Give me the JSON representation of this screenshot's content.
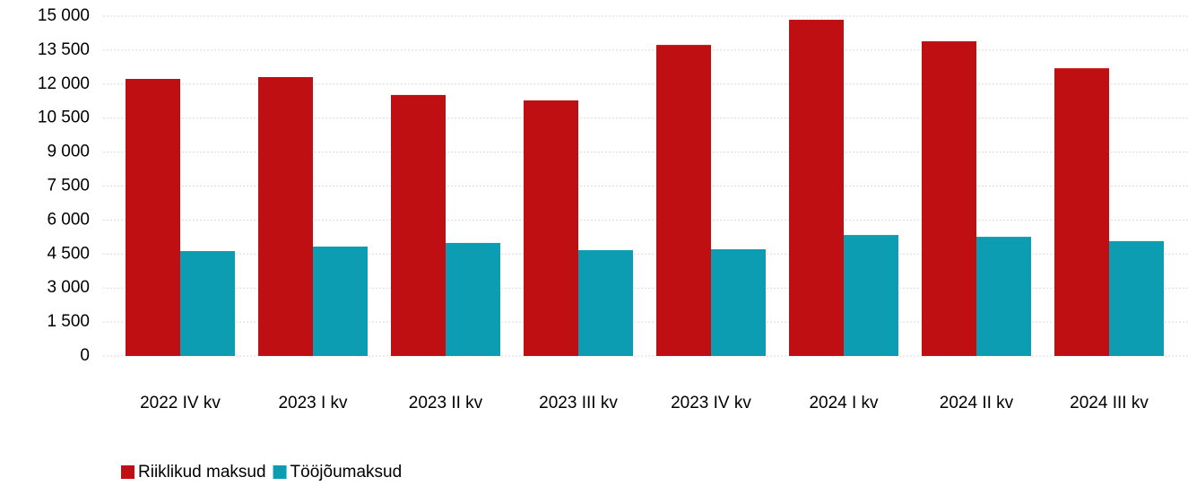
{
  "chart_data": {
    "type": "bar",
    "categories": [
      "2022 IV kv",
      "2023 I kv",
      "2023 II kv",
      "2023 III kv",
      "2023 IV kv",
      "2024 I kv",
      "2024 II kv",
      "2024 III kv"
    ],
    "series": [
      {
        "name": "Riiklikud maksud",
        "color": "#c00f12",
        "values": [
          12230,
          12310,
          11520,
          11280,
          13730,
          14840,
          13890,
          12700
        ]
      },
      {
        "name": "Tööjõumaksud",
        "color": "#0c9db3",
        "values": [
          4630,
          4830,
          4990,
          4670,
          4710,
          5340,
          5260,
          5070
        ]
      }
    ],
    "ylim": [
      0,
      15000
    ],
    "yticks": [
      0,
      {
        "value": 1500,
        "label": "1 500"
      },
      {
        "value": 3000,
        "label": "3 000"
      },
      {
        "value": 4500,
        "label": "4 500"
      },
      {
        "value": 6000,
        "label": "6 000"
      },
      {
        "value": 7500,
        "label": "7 500"
      },
      {
        "value": 9000,
        "label": "9 000"
      },
      {
        "value": 10500,
        "label": "10 500"
      },
      {
        "value": 12000,
        "label": "12 000"
      },
      {
        "value": 13500,
        "label": "13 500"
      },
      {
        "value": 15000,
        "label": "15 000"
      }
    ],
    "grid": true,
    "legend": "bottom-left"
  }
}
